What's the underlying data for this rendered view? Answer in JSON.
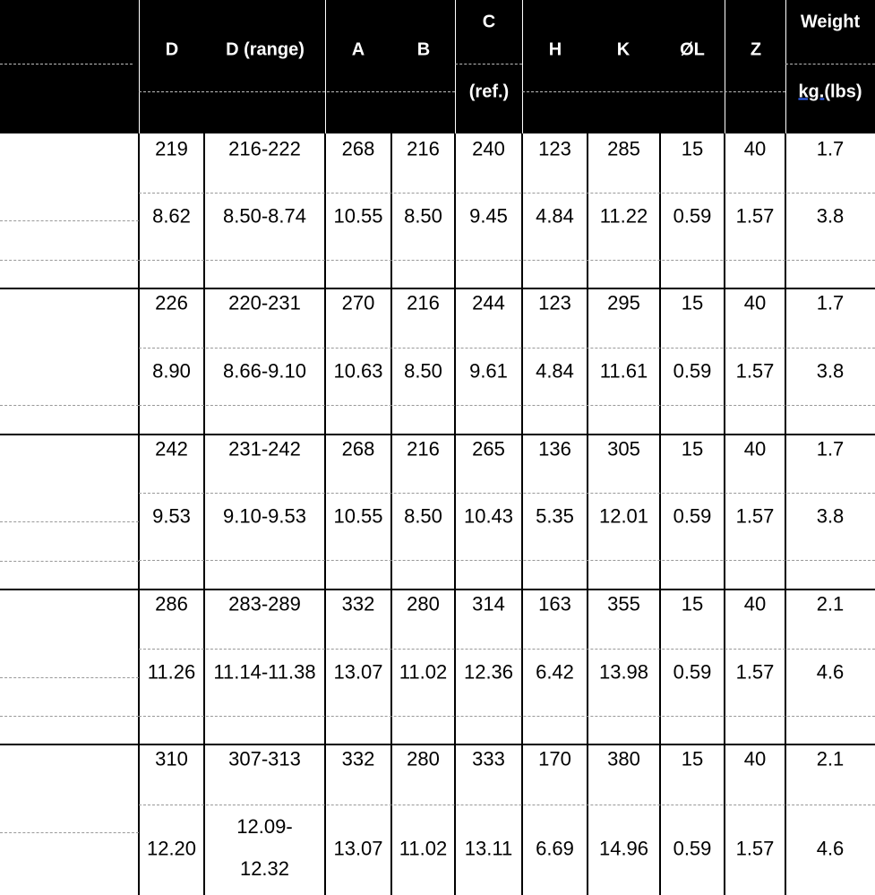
{
  "header": {
    "D": "D",
    "D_range": "D (range)",
    "A": "A",
    "B": "B",
    "C": "C",
    "C_ref": "(ref.)",
    "H": "H",
    "K": "K",
    "L": "ØL",
    "Z": "Z",
    "weight": "Weight",
    "weight_unit_kg": "kg.",
    "weight_unit_lbs": "(lbs)"
  },
  "groups": [
    {
      "metric": [
        "219",
        "216-222",
        "268",
        "216",
        "240",
        "123",
        "285",
        "15",
        "40",
        "1.7"
      ],
      "imperial": [
        "8.62",
        "8.50-8.74",
        "10.55",
        "8.50",
        "9.45",
        "4.84",
        "11.22",
        "0.59",
        "1.57",
        "3.8"
      ]
    },
    {
      "metric": [
        "226",
        "220-231",
        "270",
        "216",
        "244",
        "123",
        "295",
        "15",
        "40",
        "1.7"
      ],
      "imperial": [
        "8.90",
        "8.66-9.10",
        "10.63",
        "8.50",
        "9.61",
        "4.84",
        "11.61",
        "0.59",
        "1.57",
        "3.8"
      ]
    },
    {
      "metric": [
        "242",
        "231-242",
        "268",
        "216",
        "265",
        "136",
        "305",
        "15",
        "40",
        "1.7"
      ],
      "imperial": [
        "9.53",
        "9.10-9.53",
        "10.55",
        "8.50",
        "10.43",
        "5.35",
        "12.01",
        "0.59",
        "1.57",
        "3.8"
      ]
    },
    {
      "metric": [
        "286",
        "283-289",
        "332",
        "280",
        "314",
        "163",
        "355",
        "15",
        "40",
        "2.1"
      ],
      "imperial": [
        "11.26",
        "11.14-11.38",
        "13.07",
        "11.02",
        "12.36",
        "6.42",
        "13.98",
        "0.59",
        "1.57",
        "4.6"
      ]
    },
    {
      "metric": [
        "310",
        "307-313",
        "332",
        "280",
        "333",
        "170",
        "380",
        "15",
        "40",
        "2.1"
      ],
      "imperial": [
        "12.20",
        "12.09-\n12.32",
        "13.07",
        "11.02",
        "13.11",
        "6.69",
        "14.96",
        "0.59",
        "1.57",
        "4.6"
      ]
    }
  ]
}
